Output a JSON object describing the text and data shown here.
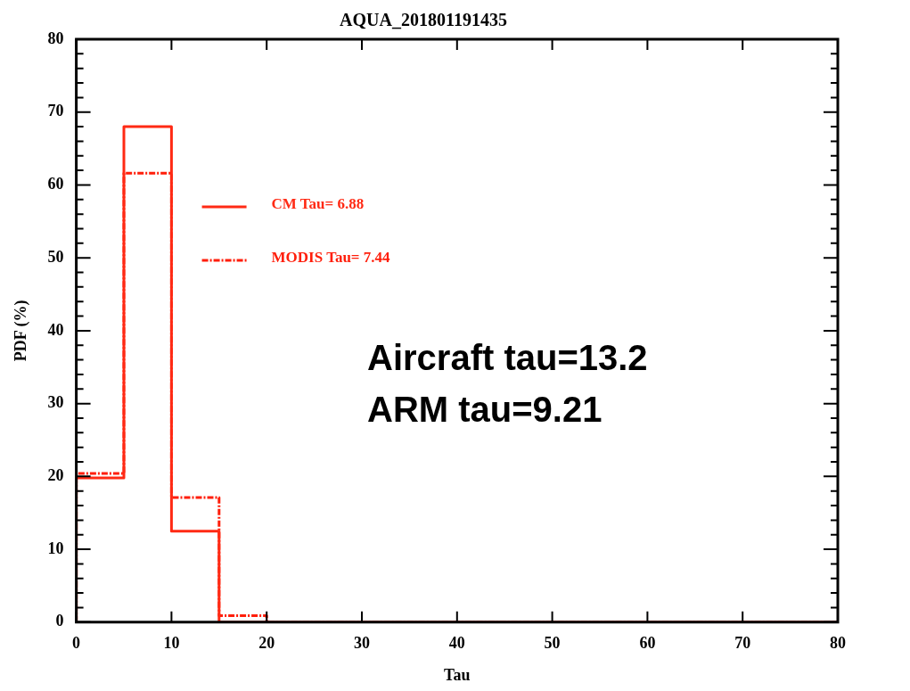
{
  "chart_data": {
    "type": "histogram",
    "title": "AQUA_201801191435",
    "xlabel": "Tau",
    "ylabel": "PDF (%)",
    "bins": [
      0,
      5,
      10,
      15,
      20,
      25,
      30,
      35,
      40,
      45,
      50,
      55,
      60,
      65,
      70,
      75,
      80
    ],
    "series": [
      {
        "name": "CM Tau= 6.88",
        "color": "#ff2a14",
        "line_style": "solid",
        "values": [
          19.8,
          68,
          12.5,
          0,
          0,
          0,
          0,
          0,
          0,
          0,
          0,
          0,
          0,
          0,
          0,
          0
        ]
      },
      {
        "name": "MODIS Tau= 7.44",
        "color": "#ff1e0a",
        "line_style": "dashed",
        "values": [
          20.4,
          61.6,
          17.1,
          0.9,
          0,
          0,
          0,
          0,
          0,
          0,
          0,
          0,
          0,
          0,
          0,
          0
        ]
      }
    ],
    "xlim": [
      0,
      80
    ],
    "xticks": [
      0,
      10,
      20,
      30,
      40,
      50,
      60,
      70,
      80
    ],
    "ylim": [
      0,
      80
    ],
    "yticks": [
      0,
      10,
      20,
      30,
      40,
      50,
      60,
      70,
      80
    ],
    "grid": false,
    "legend": "top left",
    "annotations": [
      "Aircraft tau=13.2",
      "ARM tau=9.21"
    ]
  }
}
